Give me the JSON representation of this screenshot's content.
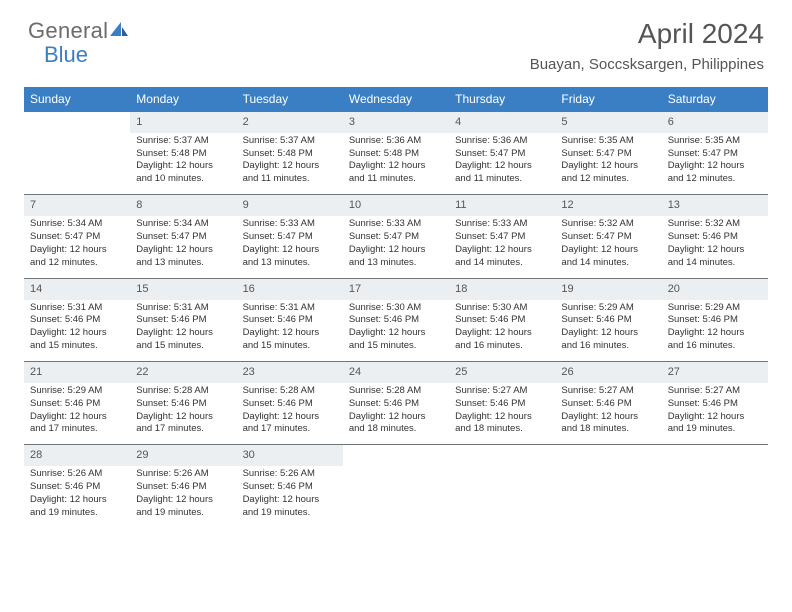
{
  "brand": {
    "word1": "General",
    "word2": "Blue",
    "sail_color": "#3a7fc4",
    "word1_color": "#6b6b6b",
    "word2_color": "#3a7fc4"
  },
  "header": {
    "month_title": "April 2024",
    "location": "Buayan, Soccsksargen, Philippines"
  },
  "colors": {
    "header_bg": "#3a7fc4",
    "header_text": "#ffffff",
    "daynum_bg": "#eceff1",
    "daynum_border": "#707577",
    "body_text": "#333333",
    "background": "#ffffff"
  },
  "typography": {
    "month_fontsize": 28,
    "location_fontsize": 15,
    "dayheader_fontsize": 12,
    "daynum_fontsize": 11,
    "cell_fontsize": 9.5
  },
  "day_headers": [
    "Sunday",
    "Monday",
    "Tuesday",
    "Wednesday",
    "Thursday",
    "Friday",
    "Saturday"
  ],
  "weeks": [
    {
      "nums": [
        "",
        "1",
        "2",
        "3",
        "4",
        "5",
        "6"
      ],
      "cells": [
        null,
        {
          "sunrise": "Sunrise: 5:37 AM",
          "sunset": "Sunset: 5:48 PM",
          "dl1": "Daylight: 12 hours",
          "dl2": "and 10 minutes."
        },
        {
          "sunrise": "Sunrise: 5:37 AM",
          "sunset": "Sunset: 5:48 PM",
          "dl1": "Daylight: 12 hours",
          "dl2": "and 11 minutes."
        },
        {
          "sunrise": "Sunrise: 5:36 AM",
          "sunset": "Sunset: 5:48 PM",
          "dl1": "Daylight: 12 hours",
          "dl2": "and 11 minutes."
        },
        {
          "sunrise": "Sunrise: 5:36 AM",
          "sunset": "Sunset: 5:47 PM",
          "dl1": "Daylight: 12 hours",
          "dl2": "and 11 minutes."
        },
        {
          "sunrise": "Sunrise: 5:35 AM",
          "sunset": "Sunset: 5:47 PM",
          "dl1": "Daylight: 12 hours",
          "dl2": "and 12 minutes."
        },
        {
          "sunrise": "Sunrise: 5:35 AM",
          "sunset": "Sunset: 5:47 PM",
          "dl1": "Daylight: 12 hours",
          "dl2": "and 12 minutes."
        }
      ]
    },
    {
      "nums": [
        "7",
        "8",
        "9",
        "10",
        "11",
        "12",
        "13"
      ],
      "cells": [
        {
          "sunrise": "Sunrise: 5:34 AM",
          "sunset": "Sunset: 5:47 PM",
          "dl1": "Daylight: 12 hours",
          "dl2": "and 12 minutes."
        },
        {
          "sunrise": "Sunrise: 5:34 AM",
          "sunset": "Sunset: 5:47 PM",
          "dl1": "Daylight: 12 hours",
          "dl2": "and 13 minutes."
        },
        {
          "sunrise": "Sunrise: 5:33 AM",
          "sunset": "Sunset: 5:47 PM",
          "dl1": "Daylight: 12 hours",
          "dl2": "and 13 minutes."
        },
        {
          "sunrise": "Sunrise: 5:33 AM",
          "sunset": "Sunset: 5:47 PM",
          "dl1": "Daylight: 12 hours",
          "dl2": "and 13 minutes."
        },
        {
          "sunrise": "Sunrise: 5:33 AM",
          "sunset": "Sunset: 5:47 PM",
          "dl1": "Daylight: 12 hours",
          "dl2": "and 14 minutes."
        },
        {
          "sunrise": "Sunrise: 5:32 AM",
          "sunset": "Sunset: 5:47 PM",
          "dl1": "Daylight: 12 hours",
          "dl2": "and 14 minutes."
        },
        {
          "sunrise": "Sunrise: 5:32 AM",
          "sunset": "Sunset: 5:46 PM",
          "dl1": "Daylight: 12 hours",
          "dl2": "and 14 minutes."
        }
      ]
    },
    {
      "nums": [
        "14",
        "15",
        "16",
        "17",
        "18",
        "19",
        "20"
      ],
      "cells": [
        {
          "sunrise": "Sunrise: 5:31 AM",
          "sunset": "Sunset: 5:46 PM",
          "dl1": "Daylight: 12 hours",
          "dl2": "and 15 minutes."
        },
        {
          "sunrise": "Sunrise: 5:31 AM",
          "sunset": "Sunset: 5:46 PM",
          "dl1": "Daylight: 12 hours",
          "dl2": "and 15 minutes."
        },
        {
          "sunrise": "Sunrise: 5:31 AM",
          "sunset": "Sunset: 5:46 PM",
          "dl1": "Daylight: 12 hours",
          "dl2": "and 15 minutes."
        },
        {
          "sunrise": "Sunrise: 5:30 AM",
          "sunset": "Sunset: 5:46 PM",
          "dl1": "Daylight: 12 hours",
          "dl2": "and 15 minutes."
        },
        {
          "sunrise": "Sunrise: 5:30 AM",
          "sunset": "Sunset: 5:46 PM",
          "dl1": "Daylight: 12 hours",
          "dl2": "and 16 minutes."
        },
        {
          "sunrise": "Sunrise: 5:29 AM",
          "sunset": "Sunset: 5:46 PM",
          "dl1": "Daylight: 12 hours",
          "dl2": "and 16 minutes."
        },
        {
          "sunrise": "Sunrise: 5:29 AM",
          "sunset": "Sunset: 5:46 PM",
          "dl1": "Daylight: 12 hours",
          "dl2": "and 16 minutes."
        }
      ]
    },
    {
      "nums": [
        "21",
        "22",
        "23",
        "24",
        "25",
        "26",
        "27"
      ],
      "cells": [
        {
          "sunrise": "Sunrise: 5:29 AM",
          "sunset": "Sunset: 5:46 PM",
          "dl1": "Daylight: 12 hours",
          "dl2": "and 17 minutes."
        },
        {
          "sunrise": "Sunrise: 5:28 AM",
          "sunset": "Sunset: 5:46 PM",
          "dl1": "Daylight: 12 hours",
          "dl2": "and 17 minutes."
        },
        {
          "sunrise": "Sunrise: 5:28 AM",
          "sunset": "Sunset: 5:46 PM",
          "dl1": "Daylight: 12 hours",
          "dl2": "and 17 minutes."
        },
        {
          "sunrise": "Sunrise: 5:28 AM",
          "sunset": "Sunset: 5:46 PM",
          "dl1": "Daylight: 12 hours",
          "dl2": "and 18 minutes."
        },
        {
          "sunrise": "Sunrise: 5:27 AM",
          "sunset": "Sunset: 5:46 PM",
          "dl1": "Daylight: 12 hours",
          "dl2": "and 18 minutes."
        },
        {
          "sunrise": "Sunrise: 5:27 AM",
          "sunset": "Sunset: 5:46 PM",
          "dl1": "Daylight: 12 hours",
          "dl2": "and 18 minutes."
        },
        {
          "sunrise": "Sunrise: 5:27 AM",
          "sunset": "Sunset: 5:46 PM",
          "dl1": "Daylight: 12 hours",
          "dl2": "and 19 minutes."
        }
      ]
    },
    {
      "nums": [
        "28",
        "29",
        "30",
        "",
        "",
        "",
        ""
      ],
      "cells": [
        {
          "sunrise": "Sunrise: 5:26 AM",
          "sunset": "Sunset: 5:46 PM",
          "dl1": "Daylight: 12 hours",
          "dl2": "and 19 minutes."
        },
        {
          "sunrise": "Sunrise: 5:26 AM",
          "sunset": "Sunset: 5:46 PM",
          "dl1": "Daylight: 12 hours",
          "dl2": "and 19 minutes."
        },
        {
          "sunrise": "Sunrise: 5:26 AM",
          "sunset": "Sunset: 5:46 PM",
          "dl1": "Daylight: 12 hours",
          "dl2": "and 19 minutes."
        },
        null,
        null,
        null,
        null
      ]
    }
  ]
}
